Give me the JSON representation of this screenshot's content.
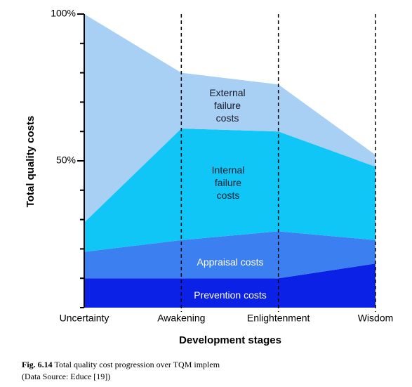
{
  "chart_data": {
    "type": "stacked_area",
    "xlabel": "Development stages",
    "ylabel": "Total quality costs",
    "categories": [
      "Uncertainty",
      "Awakening",
      "Enlightenment",
      "Wisdom"
    ],
    "series": [
      {
        "name": "Prevention costs",
        "color": "#0b22e6",
        "values": [
          10,
          10,
          10,
          15
        ]
      },
      {
        "name": "Appraisal costs",
        "color": "#3c7ff0",
        "values": [
          9,
          13,
          16,
          8
        ]
      },
      {
        "name": "Internal failure costs",
        "color": "#10c6f6",
        "values": [
          10,
          38,
          34,
          25
        ]
      },
      {
        "name": "External failure costs",
        "color": "#a8cff4",
        "values": [
          71,
          19,
          16,
          4
        ]
      }
    ],
    "ylim": [
      0,
      100
    ],
    "yticks": [
      {
        "value": 50,
        "label": "50%"
      },
      {
        "value": 100,
        "label": "100%"
      }
    ],
    "yminor_ticks": [
      0,
      10,
      20,
      30,
      40,
      60,
      70,
      80,
      90
    ],
    "dashed_stage_lines": true,
    "caption": {
      "label": "Fig. 6.14",
      "text": "Total quality cost progression over TQM implem",
      "source": "(Data Source: Educe [19])"
    }
  }
}
